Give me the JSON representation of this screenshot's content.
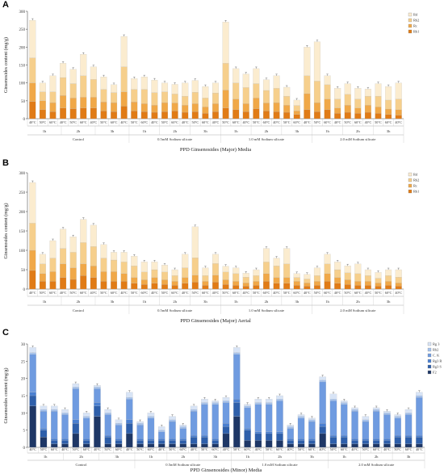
{
  "chart_data": [
    {
      "panel": "A",
      "type": "bar",
      "stacked": true,
      "title": "",
      "xlabel": "PPD Ginsenosides (Major) Media",
      "ylabel": "Ginsenosides content (mg/g)",
      "ylim": [
        0,
        300
      ],
      "yticks": [
        0,
        50,
        100,
        150,
        200,
        250,
        300
      ],
      "grid": false,
      "legend_position": "top-right",
      "temperatures": [
        "40°C",
        "50°C",
        "60°C"
      ],
      "times": [
        "1h",
        "2h",
        "3h"
      ],
      "groups": [
        "Control",
        "0.5mM Sodium silicate",
        "1.0 mM Sodium silicate",
        "2.0 mM Sodium silicate"
      ],
      "series": [
        {
          "name": "Rb1",
          "color": "#e07b16",
          "values": [
            48,
            25,
            20,
            30,
            28,
            30,
            30,
            22,
            20,
            35,
            22,
            20,
            18,
            20,
            22,
            18,
            20,
            15,
            20,
            30,
            25,
            20,
            28,
            22,
            20,
            18,
            12,
            25,
            20,
            25,
            15,
            18,
            15,
            18,
            15,
            12,
            10
          ]
        },
        {
          "name": "Rc",
          "color": "#f0a848",
          "values": [
            52,
            25,
            25,
            35,
            30,
            30,
            30,
            25,
            25,
            40,
            25,
            22,
            20,
            25,
            22,
            20,
            22,
            18,
            22,
            50,
            30,
            22,
            30,
            22,
            25,
            20,
            10,
            45,
            25,
            30,
            15,
            20,
            15,
            20,
            18,
            15,
            15
          ]
        },
        {
          "name": "Rb2",
          "color": "#f6cf8c",
          "values": [
            70,
            25,
            30,
            50,
            40,
            60,
            50,
            35,
            28,
            70,
            35,
            40,
            35,
            30,
            25,
            25,
            32,
            25,
            30,
            75,
            45,
            45,
            40,
            35,
            40,
            25,
            15,
            50,
            60,
            40,
            25,
            30,
            25,
            25,
            30,
            25,
            30
          ]
        },
        {
          "name": "Rd",
          "color": "#fbeccf",
          "values": [
            105,
            25,
            45,
            40,
            40,
            60,
            35,
            35,
            22,
            85,
            30,
            35,
            35,
            25,
            27,
            37,
            33,
            32,
            28,
            115,
            40,
            38,
            42,
            30,
            35,
            25,
            15,
            80,
            110,
            25,
            30,
            30,
            30,
            20,
            35,
            38,
            45
          ]
        }
      ]
    },
    {
      "panel": "B",
      "type": "bar",
      "stacked": true,
      "title": "",
      "xlabel": "PPD Ginsenosides (Major) Aerial",
      "ylabel": "Ginsenosides content (mg/g)",
      "ylim": [
        0,
        300
      ],
      "yticks": [
        0,
        50,
        100,
        150,
        200,
        250,
        300
      ],
      "grid": false,
      "legend_position": "top-right",
      "temperatures": [
        "40°C",
        "50°C",
        "60°C"
      ],
      "times": [
        "1h",
        "2h",
        "3h"
      ],
      "groups": [
        "Control",
        "0.5mM Sodium silicate",
        "1.0 mM Sodium silicate",
        "2.0 mM Sodium silicate"
      ],
      "series": [
        {
          "name": "Rb1",
          "color": "#e07b16",
          "values": [
            48,
            20,
            20,
            30,
            25,
            35,
            30,
            20,
            20,
            20,
            15,
            12,
            15,
            12,
            10,
            15,
            18,
            10,
            18,
            12,
            10,
            8,
            10,
            20,
            15,
            15,
            10,
            8,
            10,
            20,
            15,
            12,
            10,
            10,
            8,
            10,
            8
          ]
        },
        {
          "name": "Rc",
          "color": "#f0a848",
          "values": [
            52,
            20,
            25,
            35,
            30,
            30,
            30,
            25,
            25,
            20,
            15,
            12,
            15,
            12,
            10,
            15,
            18,
            10,
            18,
            12,
            10,
            8,
            10,
            20,
            15,
            15,
            10,
            8,
            10,
            20,
            15,
            12,
            10,
            10,
            8,
            10,
            8
          ]
        },
        {
          "name": "Rb2",
          "color": "#f6cf8c",
          "values": [
            70,
            25,
            35,
            40,
            40,
            55,
            50,
            35,
            30,
            30,
            30,
            20,
            20,
            20,
            15,
            25,
            45,
            15,
            30,
            20,
            20,
            15,
            15,
            30,
            30,
            35,
            10,
            10,
            15,
            25,
            20,
            18,
            20,
            15,
            12,
            15,
            15
          ]
        },
        {
          "name": "Rd",
          "color": "#fbeccf",
          "values": [
            105,
            25,
            45,
            50,
            40,
            60,
            55,
            35,
            20,
            25,
            25,
            26,
            20,
            18,
            15,
            35,
            80,
            20,
            24,
            15,
            15,
            10,
            15,
            35,
            20,
            40,
            10,
            12,
            20,
            25,
            20,
            18,
            25,
            15,
            15,
            15,
            19
          ]
        }
      ]
    },
    {
      "panel": "C",
      "type": "bar",
      "stacked": true,
      "title": "",
      "xlabel": "PPD Ginsenosides (Minor) Media",
      "ylabel": "Ginsenosides content (mg/g)",
      "ylim": [
        0,
        30
      ],
      "yticks": [
        0,
        5,
        10,
        15,
        20,
        25,
        30
      ],
      "grid": false,
      "legend_position": "top-right",
      "temperatures": [
        "40°C",
        "50°C",
        "60°C"
      ],
      "times": [
        "1h",
        "2h",
        "3h"
      ],
      "groups": [
        "Control",
        "0.5mM Sodium silicate",
        "1.0 mM Sodium silicate",
        "2.0 mM Sodium silicate"
      ],
      "series": [
        {
          "name": "F2",
          "color": "#1e3766",
          "values": [
            12,
            3,
            1,
            1,
            4,
            1,
            9,
            1,
            1,
            4,
            1,
            1,
            1,
            1,
            1,
            1,
            1,
            1,
            4,
            9,
            2,
            2,
            2,
            2,
            1,
            1,
            1,
            4,
            1,
            1,
            1,
            1,
            1,
            1,
            1,
            1,
            1
          ]
        },
        {
          "name": "Rg3 S",
          "color": "#2e5faa",
          "values": [
            3,
            2,
            1,
            1,
            3,
            1,
            3,
            2,
            1,
            3,
            1,
            1,
            1,
            1,
            1,
            2,
            2,
            1,
            2,
            4,
            3,
            2,
            2,
            2,
            1,
            1,
            1,
            2,
            2,
            2,
            1,
            1,
            1,
            1,
            2,
            2,
            2
          ]
        },
        {
          "name": "Rg3 R",
          "color": "#4a7fd0",
          "values": [
            1,
            0.5,
            0.5,
            0.5,
            1,
            0.5,
            1,
            0.5,
            0.5,
            1,
            0.5,
            0.5,
            0.5,
            0.5,
            0.5,
            0.5,
            0.5,
            0.5,
            1,
            1,
            0.5,
            0.5,
            0.5,
            0.5,
            0.5,
            0.5,
            0.5,
            1,
            0.5,
            0.5,
            0.5,
            0.5,
            0.5,
            0.5,
            0.5,
            0.5,
            0.5
          ]
        },
        {
          "name": "C. K",
          "color": "#6f9be0",
          "values": [
            11,
            5,
            8,
            7,
            9,
            6,
            4,
            6,
            4,
            6,
            4,
            6,
            2,
            5,
            3,
            7,
            9,
            10,
            6,
            13,
            6,
            8,
            8,
            9,
            3,
            6,
            5,
            12,
            10,
            9,
            8,
            5,
            8,
            7,
            5,
            6,
            11
          ]
        },
        {
          "name": "Rh2",
          "color": "#a4c2ee",
          "values": [
            0.5,
            0.5,
            0.5,
            0.5,
            0.5,
            0.5,
            0.5,
            0.5,
            0.5,
            0.5,
            0.5,
            0.5,
            0.5,
            0.5,
            0.5,
            0.5,
            0.5,
            0.5,
            0.5,
            0.5,
            0.5,
            0.5,
            0.5,
            0.5,
            0.5,
            0.5,
            0.5,
            0.5,
            0.5,
            0.5,
            0.5,
            0.5,
            0.5,
            0.5,
            0.5,
            0.5,
            0.5
          ]
        },
        {
          "name": "Rg 3",
          "color": "#d8e4f6",
          "values": [
            1.5,
            1,
            1,
            1,
            1,
            1,
            0.5,
            1,
            1,
            1.5,
            0.5,
            1,
            1,
            1,
            0.5,
            1,
            1,
            0.5,
            1,
            1.5,
            0.5,
            1,
            1,
            1,
            0.5,
            0.5,
            0.5,
            1,
            1.5,
            0.5,
            0.5,
            1,
            0.5,
            0.5,
            0.5,
            1,
            1
          ]
        }
      ]
    }
  ]
}
